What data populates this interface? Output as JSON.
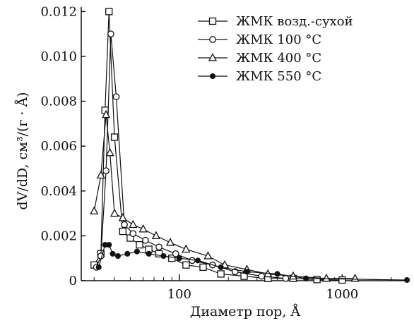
{
  "chart_data": {
    "type": "line",
    "x_scale": "log",
    "title": "",
    "xlabel": "Диаметр пор, Å",
    "ylabel": "dV/dD, см³/(г · Å)",
    "xlim": [
      25,
      2600
    ],
    "ylim": [
      0,
      0.0122
    ],
    "x_ticks": [
      {
        "value": 100,
        "label": "100"
      },
      {
        "value": 1000,
        "label": "1000"
      }
    ],
    "y_ticks": [
      {
        "value": 0,
        "label": "0"
      },
      {
        "value": 0.002,
        "label": "0.002"
      },
      {
        "value": 0.004,
        "label": "0.004"
      },
      {
        "value": 0.006,
        "label": "0.006"
      },
      {
        "value": 0.008,
        "label": "0.008"
      },
      {
        "value": 0.01,
        "label": "0.010"
      },
      {
        "value": 0.012,
        "label": "0.012"
      }
    ],
    "grid": false,
    "legend_position": "top-right",
    "series": [
      {
        "name": "ЖМК возд.-сухой",
        "marker": "square-open",
        "x": [
          30,
          33,
          35,
          37,
          40,
          45,
          50,
          57,
          65,
          75,
          90,
          110,
          140,
          180,
          250,
          350,
          500,
          700,
          1000
        ],
        "y": [
          0.0007,
          0.0012,
          0.0076,
          0.012,
          0.0064,
          0.0022,
          0.0019,
          0.0016,
          0.0014,
          0.0012,
          0.001,
          0.0007,
          0.0006,
          0.0003,
          0.0002,
          0.0001,
          0.0001,
          5e-05,
          3e-05
        ]
      },
      {
        "name": "ЖМК 100 °С",
        "marker": "circle-open",
        "x": [
          31,
          33,
          35.5,
          38,
          41,
          46,
          52,
          62,
          75,
          95,
          120,
          160,
          220,
          320,
          450
        ],
        "y": [
          0.0006,
          0.0011,
          0.0049,
          0.011,
          0.0082,
          0.0025,
          0.0021,
          0.0018,
          0.0015,
          0.0012,
          0.0009,
          0.0007,
          0.0004,
          0.0002,
          0.0001
        ]
      },
      {
        "name": "ЖМК 400 °С",
        "marker": "triangle-open",
        "x": [
          30,
          33,
          35.5,
          37.5,
          40,
          45,
          52,
          60,
          72,
          88,
          110,
          150,
          190,
          260,
          350,
          500,
          800,
          1200
        ],
        "y": [
          0.0031,
          0.0047,
          0.0074,
          0.0057,
          0.003,
          0.0028,
          0.0025,
          0.0023,
          0.002,
          0.0017,
          0.0014,
          0.0011,
          0.0007,
          0.0005,
          0.0003,
          0.0002,
          0.0001,
          0.0001
        ]
      },
      {
        "name": "ЖМК 550 °С",
        "marker": "circle-filled",
        "x": [
          32,
          35,
          37,
          39,
          42,
          48,
          55,
          65,
          80,
          100,
          130,
          180,
          260,
          400,
          600,
          2500
        ],
        "y": [
          0.0006,
          0.0016,
          0.0016,
          0.0012,
          0.0011,
          0.0012,
          0.0013,
          0.0012,
          0.0011,
          0.001,
          0.0009,
          0.0006,
          0.0004,
          0.0003,
          0.0001,
          3e-05
        ]
      }
    ]
  }
}
